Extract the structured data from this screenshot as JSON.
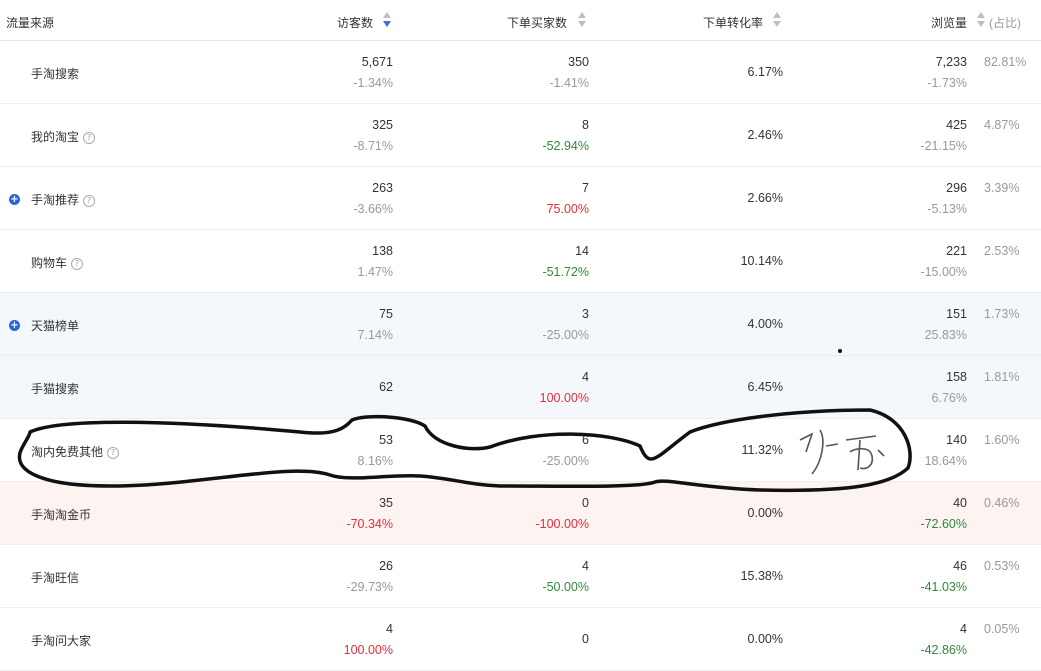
{
  "header": {
    "source": "流量来源",
    "visitors": "访客数",
    "buyers": "下单买家数",
    "conversion": "下单转化率",
    "pageviews": "浏览量",
    "share": "(占比)"
  },
  "rows": [
    {
      "source": "手淘搜索",
      "help": false,
      "expand": false,
      "visitors": "5,671",
      "visitors_chg": "-1.34%",
      "buyers": "350",
      "buyers_chg": "-1.41%",
      "conversion": "6.17%",
      "pageviews": "7,233",
      "pageviews_chg": "-1.73%",
      "share": "82.81%"
    },
    {
      "source": "我的淘宝",
      "help": true,
      "expand": false,
      "visitors": "325",
      "visitors_chg": "-8.71%",
      "buyers": "8",
      "buyers_chg": "-52.94%",
      "conversion": "2.46%",
      "pageviews": "425",
      "pageviews_chg": "-21.15%",
      "share": "4.87%"
    },
    {
      "source": "手淘推荐",
      "help": true,
      "expand": true,
      "visitors": "263",
      "visitors_chg": "-3.66%",
      "buyers": "7",
      "buyers_chg": "75.00%",
      "conversion": "2.66%",
      "pageviews": "296",
      "pageviews_chg": "-5.13%",
      "share": "3.39%"
    },
    {
      "source": "购物车",
      "help": true,
      "expand": false,
      "visitors": "138",
      "visitors_chg": "1.47%",
      "buyers": "14",
      "buyers_chg": "-51.72%",
      "conversion": "10.14%",
      "pageviews": "221",
      "pageviews_chg": "-15.00%",
      "share": "2.53%"
    },
    {
      "source": "天猫榜单",
      "help": false,
      "expand": true,
      "visitors": "75",
      "visitors_chg": "7.14%",
      "buyers": "3",
      "buyers_chg": "-25.00%",
      "conversion": "4.00%",
      "pageviews": "151",
      "pageviews_chg": "25.83%",
      "share": "1.73%"
    },
    {
      "source": "手猫搜索",
      "help": false,
      "expand": false,
      "visitors": "62",
      "visitors_chg": "",
      "buyers": "4",
      "buyers_chg": "100.00%",
      "conversion": "6.45%",
      "pageviews": "158",
      "pageviews_chg": "6.76%",
      "share": "1.81%"
    },
    {
      "source": "淘内免费其他",
      "help": true,
      "expand": false,
      "visitors": "53",
      "visitors_chg": "8.16%",
      "buyers": "6",
      "buyers_chg": "-25.00%",
      "conversion": "11.32%",
      "pageviews": "140",
      "pageviews_chg": "18.64%",
      "share": "1.60%"
    },
    {
      "source": "手淘淘金币",
      "help": false,
      "expand": false,
      "visitors": "35",
      "visitors_chg": "-70.34%",
      "buyers": "0",
      "buyers_chg": "-100.00%",
      "conversion": "0.00%",
      "pageviews": "40",
      "pageviews_chg": "-72.60%",
      "share": "0.46%"
    },
    {
      "source": "手淘旺信",
      "help": false,
      "expand": false,
      "visitors": "26",
      "visitors_chg": "-29.73%",
      "buyers": "4",
      "buyers_chg": "-50.00%",
      "conversion": "15.38%",
      "pageviews": "46",
      "pageviews_chg": "-41.03%",
      "share": "0.53%"
    },
    {
      "source": "手淘问大家",
      "help": false,
      "expand": false,
      "visitors": "4",
      "visitors_chg": "100.00%",
      "buyers": "0",
      "buyers_chg": "",
      "conversion": "0.00%",
      "pageviews": "4",
      "pageviews_chg": "-42.86%",
      "share": "0.05%"
    }
  ],
  "colors": {
    "positive_change": "#e0303b",
    "negative_change": "#2f8a3c",
    "neutral_change": "#999999",
    "sort_active": "#3a6fd6",
    "ink": "#111111"
  },
  "annotation": {
    "handwriting": "多面",
    "icon": "hand-drawn-circle-annotation"
  }
}
